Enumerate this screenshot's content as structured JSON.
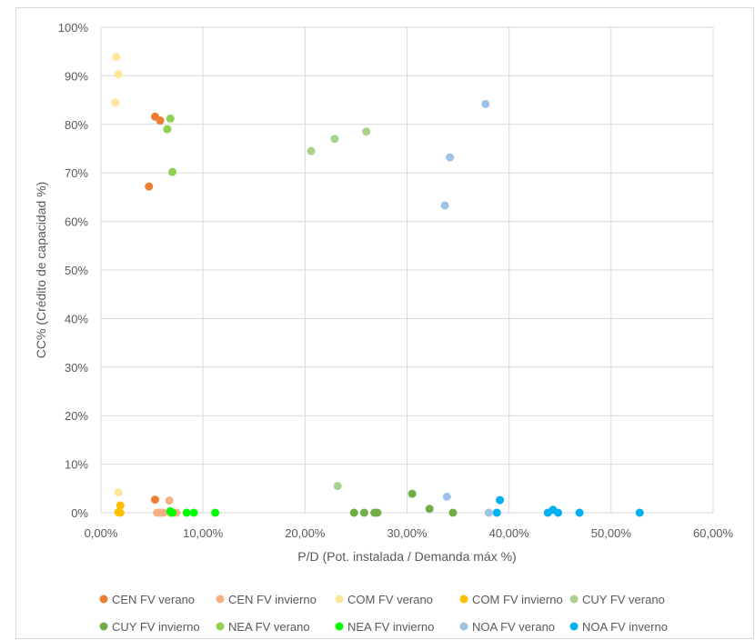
{
  "chart_data": {
    "type": "scatter",
    "xlabel": "P/D (Pot. instalada / Demanda máx %)",
    "ylabel": "CC% (Crédito de capacidad %)",
    "xlim": [
      0,
      60
    ],
    "ylim": [
      0,
      100
    ],
    "x_ticks": [
      0,
      10,
      20,
      30,
      40,
      50,
      60
    ],
    "y_ticks": [
      0,
      10,
      20,
      30,
      40,
      50,
      60,
      70,
      80,
      90,
      100
    ],
    "x_tick_labels": [
      "0,00%",
      "10,00%",
      "20,00%",
      "30,00%",
      "40,00%",
      "50,00%",
      "60,00%"
    ],
    "y_tick_labels": [
      "0%",
      "10%",
      "20%",
      "30%",
      "40%",
      "50%",
      "60%",
      "70%",
      "80%",
      "90%",
      "100%"
    ],
    "grid": true,
    "legend_position": "bottom",
    "series": [
      {
        "name": "CEN FV verano",
        "color": "#ED7D31",
        "points": [
          [
            5.3,
            81.6
          ],
          [
            5.8,
            80.8
          ],
          [
            4.7,
            67.2
          ],
          [
            5.3,
            2.7
          ]
        ]
      },
      {
        "name": "CEN FV invierno",
        "color": "#F4B183",
        "points": [
          [
            6.7,
            2.5
          ],
          [
            5.5,
            0
          ],
          [
            5.8,
            0
          ],
          [
            6.1,
            0
          ],
          [
            6.8,
            0
          ],
          [
            7.4,
            0
          ]
        ]
      },
      {
        "name": "COM FV verano",
        "color": "#FFE699",
        "points": [
          [
            1.5,
            93.9
          ],
          [
            1.7,
            90.3
          ],
          [
            1.4,
            84.5
          ],
          [
            1.7,
            4.2
          ]
        ]
      },
      {
        "name": "COM FV invierno",
        "color": "#FFC000",
        "points": [
          [
            1.9,
            1.5
          ],
          [
            1.7,
            0.1
          ],
          [
            1.9,
            0
          ]
        ]
      },
      {
        "name": "CUY FV verano",
        "color": "#A9D18E",
        "points": [
          [
            20.6,
            74.5
          ],
          [
            22.9,
            77.0
          ],
          [
            26.0,
            78.5
          ],
          [
            23.2,
            5.5
          ]
        ]
      },
      {
        "name": "CUY FV invierno",
        "color": "#70AD47",
        "points": [
          [
            30.5,
            3.9
          ],
          [
            32.2,
            0.8
          ],
          [
            24.8,
            0
          ],
          [
            25.8,
            0
          ],
          [
            26.8,
            0
          ],
          [
            27.1,
            0
          ],
          [
            34.5,
            0
          ]
        ]
      },
      {
        "name": "NEA FV verano",
        "color": "#92D050",
        "points": [
          [
            6.8,
            81.2
          ],
          [
            6.5,
            79.0
          ],
          [
            7.0,
            70.2
          ]
        ]
      },
      {
        "name": "NEA FV invierno",
        "color": "#00FF00",
        "points": [
          [
            6.8,
            0.3
          ],
          [
            7.0,
            0
          ],
          [
            8.4,
            0
          ],
          [
            9.1,
            0
          ],
          [
            11.2,
            0
          ]
        ]
      },
      {
        "name": "NOA FV verano",
        "color": "#9DC3E6",
        "points": [
          [
            37.7,
            84.2
          ],
          [
            34.2,
            73.2
          ],
          [
            33.7,
            63.3
          ],
          [
            33.9,
            3.3
          ],
          [
            38.0,
            0
          ]
        ]
      },
      {
        "name": "NOA FV inverno",
        "color": "#00B0F0",
        "points": [
          [
            39.1,
            2.6
          ],
          [
            38.8,
            0
          ],
          [
            43.8,
            0
          ],
          [
            44.3,
            0.6
          ],
          [
            44.8,
            0
          ],
          [
            46.9,
            0
          ],
          [
            52.8,
            0
          ]
        ]
      }
    ]
  }
}
